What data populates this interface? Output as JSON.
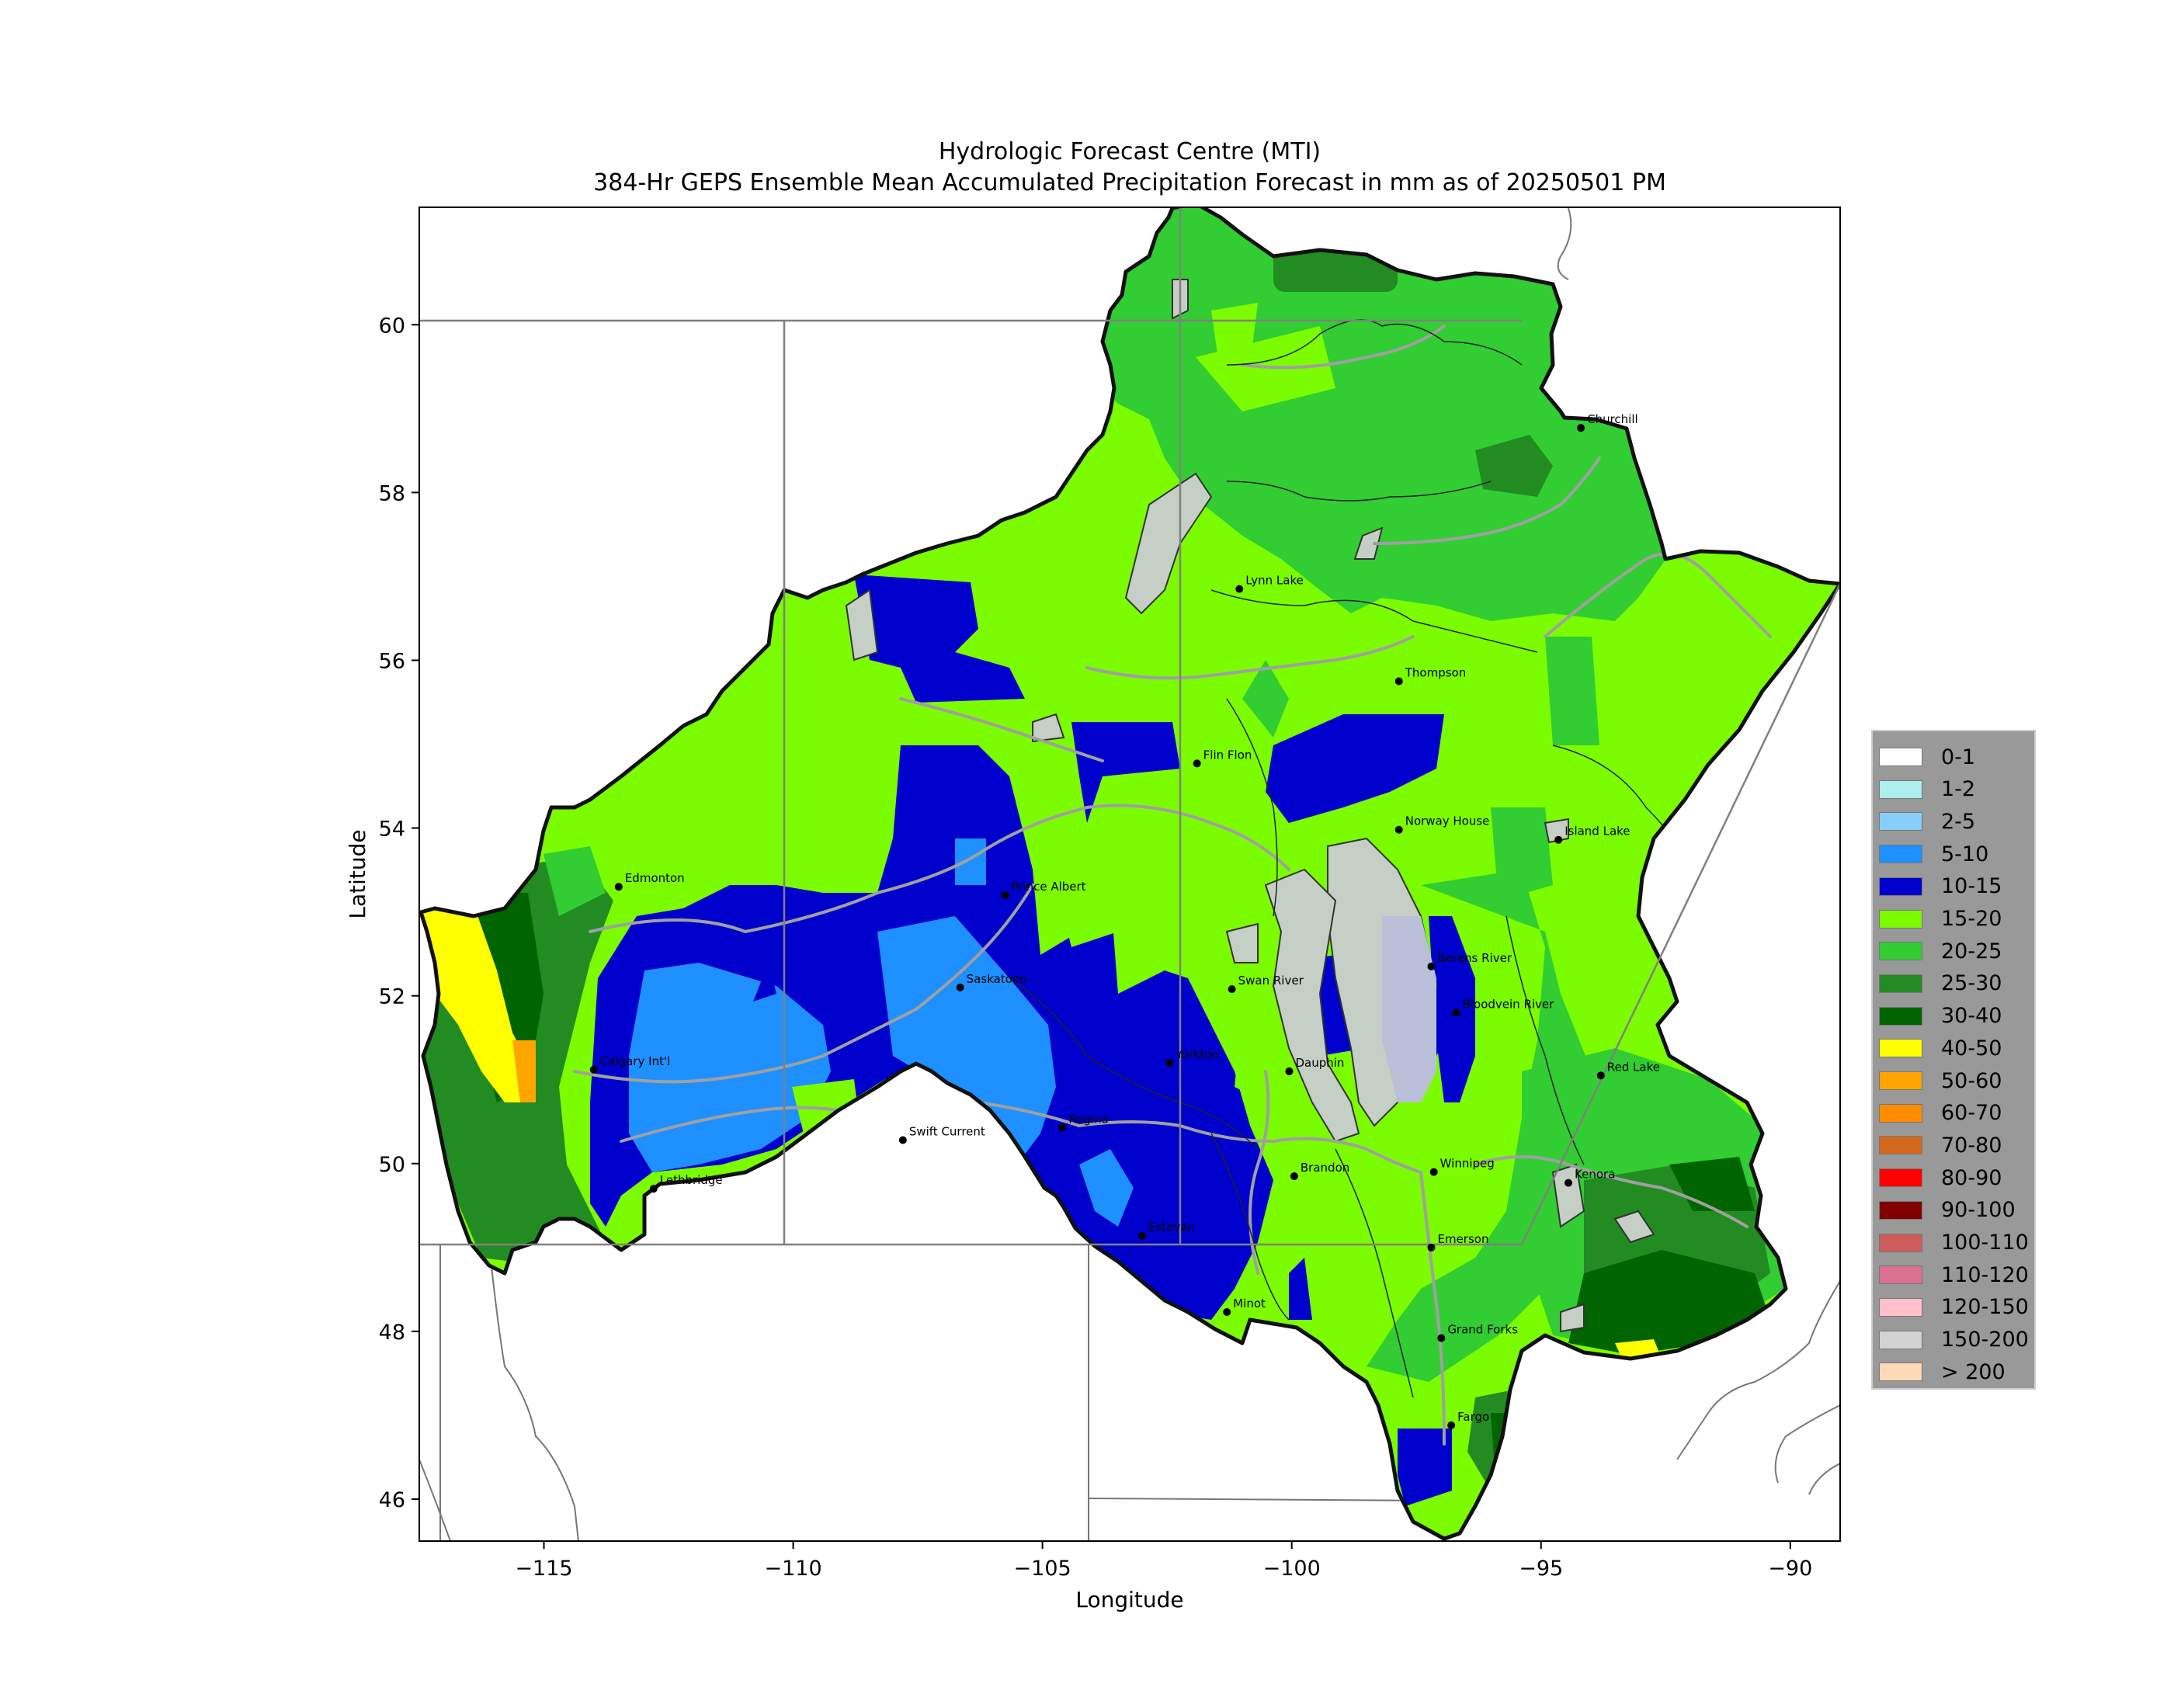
{
  "title_line1": "Hydrologic Forecast Centre (MTI)",
  "title_line2": "384-Hr GEPS Ensemble Mean Accumulated Precipitation Forecast in mm as of 20250501 PM",
  "xlabel": "Longitude",
  "ylabel": "Latitude",
  "x_ticks": [
    {
      "value": -115,
      "label": "−115"
    },
    {
      "value": -110,
      "label": "−110"
    },
    {
      "value": -105,
      "label": "−105"
    },
    {
      "value": -100,
      "label": "−100"
    },
    {
      "value": -95,
      "label": "−95"
    },
    {
      "value": -90,
      "label": "−90"
    }
  ],
  "y_ticks": [
    {
      "value": 46,
      "label": "46"
    },
    {
      "value": 48,
      "label": "48"
    },
    {
      "value": 50,
      "label": "50"
    },
    {
      "value": 52,
      "label": "52"
    },
    {
      "value": 54,
      "label": "54"
    },
    {
      "value": 56,
      "label": "56"
    },
    {
      "value": 58,
      "label": "58"
    },
    {
      "value": 60,
      "label": "60"
    }
  ],
  "xlim": [
    -117.5,
    -89
  ],
  "ylim": [
    45.5,
    61.4
  ],
  "legend": [
    {
      "label": "0-1",
      "color": "#ffffff"
    },
    {
      "label": "1-2",
      "color": "#aeeeee"
    },
    {
      "label": "2-5",
      "color": "#87cefa"
    },
    {
      "label": "5-10",
      "color": "#1e90ff"
    },
    {
      "label": "10-15",
      "color": "#0000cd"
    },
    {
      "label": "15-20",
      "color": "#7cfc00"
    },
    {
      "label": "20-25",
      "color": "#32cd32"
    },
    {
      "label": "25-30",
      "color": "#228b22"
    },
    {
      "label": "30-40",
      "color": "#006400"
    },
    {
      "label": "40-50",
      "color": "#ffff00"
    },
    {
      "label": "50-60",
      "color": "#ffa500"
    },
    {
      "label": "60-70",
      "color": "#ff8c00"
    },
    {
      "label": "70-80",
      "color": "#d2691e"
    },
    {
      "label": "80-90",
      "color": "#ff0000"
    },
    {
      "label": "90-100",
      "color": "#800000"
    },
    {
      "label": "100-110",
      "color": "#cd5c5c"
    },
    {
      "label": "110-120",
      "color": "#db7093"
    },
    {
      "label": "120-150",
      "color": "#ffc0cb"
    },
    {
      "label": "150-200",
      "color": "#d3d3d3"
    },
    {
      "label": "> 200",
      "color": "#ffdab9"
    }
  ],
  "cities": [
    {
      "name": "Churchill",
      "lon": -94.2,
      "lat": 58.77
    },
    {
      "name": "Lynn Lake",
      "lon": -101.05,
      "lat": 56.85
    },
    {
      "name": "Thompson",
      "lon": -97.85,
      "lat": 55.75
    },
    {
      "name": "Flin Flon",
      "lon": -101.9,
      "lat": 54.77
    },
    {
      "name": "Norway House",
      "lon": -97.85,
      "lat": 53.98
    },
    {
      "name": "Island Lake",
      "lon": -94.65,
      "lat": 53.86
    },
    {
      "name": "Edmonton",
      "lon": -113.5,
      "lat": 53.3
    },
    {
      "name": "Prince Albert",
      "lon": -105.75,
      "lat": 53.2
    },
    {
      "name": "Saskatoon",
      "lon": -106.65,
      "lat": 52.1
    },
    {
      "name": "Swan River",
      "lon": -101.2,
      "lat": 52.08
    },
    {
      "name": "Berens River",
      "lon": -97.2,
      "lat": 52.35
    },
    {
      "name": "Calgary Int'l",
      "lon": -114.0,
      "lat": 51.12
    },
    {
      "name": "Yorkton",
      "lon": -102.45,
      "lat": 51.2
    },
    {
      "name": "Dauphin",
      "lon": -100.05,
      "lat": 51.1
    },
    {
      "name": "Bloodvein River",
      "lon": -96.7,
      "lat": 51.8
    },
    {
      "name": "Red Lake",
      "lon": -93.8,
      "lat": 51.05
    },
    {
      "name": "Swift Current",
      "lon": -107.8,
      "lat": 50.28
    },
    {
      "name": "Regina",
      "lon": -104.6,
      "lat": 50.43
    },
    {
      "name": "Brandon",
      "lon": -99.95,
      "lat": 49.85
    },
    {
      "name": "Winnipeg",
      "lon": -97.15,
      "lat": 49.9
    },
    {
      "name": "Kenora",
      "lon": -94.45,
      "lat": 49.77
    },
    {
      "name": "Lethbridge",
      "lon": -112.8,
      "lat": 49.7
    },
    {
      "name": "Estevan",
      "lon": -103.0,
      "lat": 49.14
    },
    {
      "name": "Emerson",
      "lon": -97.2,
      "lat": 49.0
    },
    {
      "name": "Minot",
      "lon": -101.3,
      "lat": 48.23
    },
    {
      "name": "Grand Forks",
      "lon": -97.0,
      "lat": 47.92
    },
    {
      "name": "Fargo",
      "lon": -96.8,
      "lat": 46.88
    }
  ]
}
